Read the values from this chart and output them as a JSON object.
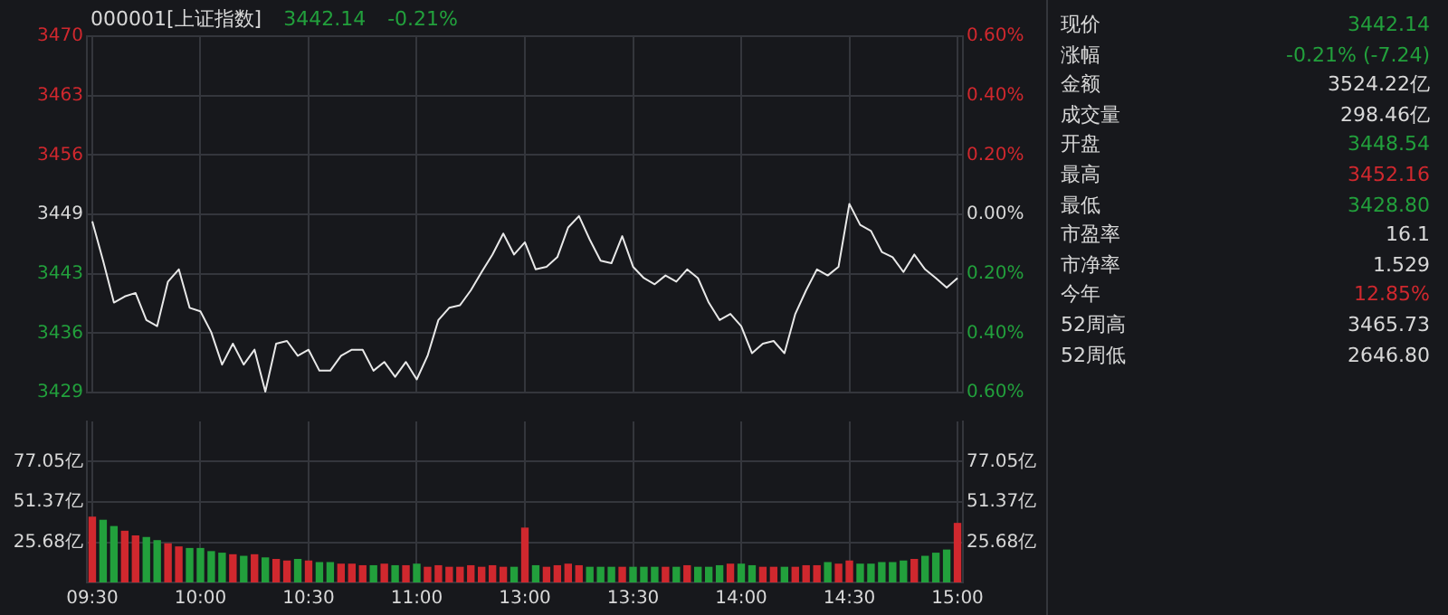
{
  "chart_data": [
    {
      "type": "line",
      "title": "000001[上证指数]",
      "annotations": [
        "3442.14",
        "-0.21%"
      ],
      "color": "#e8e8e8",
      "marker": "none",
      "grid": true,
      "tick_labels": "y",
      "categories": [
        null,
        null,
        null,
        null,
        null,
        null,
        null,
        null,
        null,
        null,
        null,
        null,
        null,
        null,
        null,
        null,
        null,
        null,
        null,
        null,
        null,
        null,
        null,
        null,
        null,
        null,
        null,
        null,
        null,
        null,
        null,
        null,
        null,
        null,
        null,
        null,
        null,
        null,
        null,
        null,
        null,
        null,
        null,
        null,
        null,
        null,
        null,
        null,
        null,
        null,
        null,
        null,
        null,
        null,
        null,
        null,
        null,
        null,
        null,
        null,
        null,
        null,
        null,
        null,
        null,
        null,
        null,
        null,
        null,
        null,
        null,
        null,
        null,
        null,
        null,
        null,
        null,
        null,
        null,
        null,
        null
      ],
      "values": [
        3448.6,
        3444.1,
        3439.3,
        3440.0,
        3440.4,
        3437.3,
        3436.6,
        3441.7,
        3443.1,
        3438.7,
        3438.3,
        3435.9,
        3432.2,
        3434.6,
        3432.2,
        3433.9,
        3429.1,
        3434.6,
        3434.9,
        3433.2,
        3433.9,
        3431.5,
        3431.5,
        3433.2,
        3433.9,
        3433.9,
        3431.5,
        3432.5,
        3430.8,
        3432.5,
        3430.5,
        3433.2,
        3437.3,
        3438.7,
        3439.0,
        3440.7,
        3442.8,
        3444.8,
        3447.2,
        3444.8,
        3446.2,
        3443.1,
        3443.4,
        3444.5,
        3447.9,
        3449.2,
        3446.5,
        3444.1,
        3443.8,
        3446.9,
        3443.4,
        3442.1,
        3441.4,
        3442.4,
        3441.7,
        3443.1,
        3442.1,
        3439.3,
        3437.3,
        3438.0,
        3436.6,
        3433.5,
        3434.6,
        3434.9,
        3433.5,
        3438.0,
        3440.7,
        3443.1,
        3442.4,
        3443.4,
        3450.6,
        3448.2,
        3447.5,
        3445.1,
        3444.5,
        3442.8,
        3444.8,
        3443.1,
        3442.1,
        3441.0,
        3442.1
      ],
      "ylim": [
        3429.0,
        3469.8
      ],
      "yticks": [
        {
          "value": 3429.0,
          "label": "3429"
        },
        {
          "value": 3435.8,
          "label": "3436"
        },
        {
          "value": 3442.6,
          "label": "3443"
        },
        {
          "value": 3449.4,
          "label": "3449"
        },
        {
          "value": 3456.2,
          "label": "3456"
        },
        {
          "value": 3463.0,
          "label": "3463"
        },
        {
          "value": 3469.8,
          "label": "3470"
        }
      ],
      "y2lim": [
        -0.6,
        0.6
      ],
      "y2ticks": [
        {
          "value": -0.6,
          "label": "0.60%"
        },
        {
          "value": -0.4,
          "label": "0.40%"
        },
        {
          "value": -0.2,
          "label": "0.20%"
        },
        {
          "value": 0,
          "label": "0.00%"
        },
        {
          "value": 0.2,
          "label": "0.20%"
        },
        {
          "value": 0.4,
          "label": "0.40%"
        },
        {
          "value": 0.6,
          "label": "0.60%"
        }
      ]
    },
    {
      "type": "bar",
      "grid": true,
      "categories": [
        "09:30",
        null,
        null,
        null,
        null,
        null,
        null,
        null,
        null,
        null,
        "10:00",
        null,
        null,
        null,
        null,
        null,
        null,
        null,
        null,
        null,
        "10:30",
        null,
        null,
        null,
        null,
        null,
        null,
        null,
        null,
        null,
        "11:00",
        null,
        null,
        null,
        null,
        null,
        null,
        null,
        null,
        null,
        "13:00",
        null,
        null,
        null,
        null,
        null,
        null,
        null,
        null,
        null,
        "13:30",
        null,
        null,
        null,
        null,
        null,
        null,
        null,
        null,
        null,
        "14:00",
        null,
        null,
        null,
        null,
        null,
        null,
        null,
        null,
        null,
        "14:30",
        null,
        null,
        null,
        null,
        null,
        null,
        null,
        null,
        null,
        "15:00"
      ],
      "values": [
        42,
        40,
        36,
        33,
        30,
        29,
        27,
        25,
        23,
        22,
        22,
        20,
        19,
        18,
        17,
        18,
        16,
        15,
        14,
        15,
        14,
        13,
        13,
        12,
        12,
        11,
        11,
        12,
        11,
        11,
        12,
        10,
        11,
        10,
        10,
        11,
        10,
        11,
        10,
        10,
        35,
        11,
        10,
        11,
        12,
        11,
        10,
        10,
        10,
        10,
        10,
        10,
        10,
        10,
        10,
        11,
        10,
        10,
        11,
        12,
        12,
        11,
        10,
        10,
        10,
        10,
        11,
        11,
        13,
        12,
        14,
        12,
        12,
        13,
        13,
        14,
        15,
        17,
        19,
        21,
        38
      ],
      "colors": [
        "#d0282e",
        "#22a03c",
        "#22a03c",
        "#d0282e",
        "#d0282e",
        "#22a03c",
        "#22a03c",
        "#d0282e",
        "#d0282e",
        "#22a03c",
        "#22a03c",
        "#22a03c",
        "#22a03c",
        "#d0282e",
        "#22a03c",
        "#d0282e",
        "#22a03c",
        "#d0282e",
        "#d0282e",
        "#22a03c",
        "#d0282e",
        "#22a03c",
        "#22a03c",
        "#d0282e",
        "#d0282e",
        "#d0282e",
        "#22a03c",
        "#d0282e",
        "#22a03c",
        "#d0282e",
        "#22a03c",
        "#d0282e",
        "#d0282e",
        "#d0282e",
        "#d0282e",
        "#d0282e",
        "#d0282e",
        "#d0282e",
        "#d0282e",
        "#22a03c",
        "#d0282e",
        "#22a03c",
        "#d0282e",
        "#d0282e",
        "#d0282e",
        "#d0282e",
        "#22a03c",
        "#22a03c",
        "#22a03c",
        "#d0282e",
        "#22a03c",
        "#22a03c",
        "#22a03c",
        "#d0282e",
        "#22a03c",
        "#d0282e",
        "#22a03c",
        "#22a03c",
        "#22a03c",
        "#d0282e",
        "#22a03c",
        "#22a03c",
        "#d0282e",
        "#d0282e",
        "#22a03c",
        "#d0282e",
        "#d0282e",
        "#d0282e",
        "#22a03c",
        "#d0282e",
        "#d0282e",
        "#22a03c",
        "#22a03c",
        "#22a03c",
        "#22a03c",
        "#22a03c",
        "#d0282e",
        "#22a03c",
        "#22a03c",
        "#22a03c",
        "#d0282e"
      ],
      "ylim": [
        0,
        102.73
      ],
      "yticks": [
        {
          "value": 25.68,
          "label": "25.68亿"
        },
        {
          "value": 51.37,
          "label": "51.37亿"
        },
        {
          "value": 77.05,
          "label": "77.05亿"
        }
      ],
      "y2lim": [
        0,
        102.73
      ],
      "y2ticks": [
        {
          "value": 25.68,
          "label": "25.68亿"
        },
        {
          "value": 51.37,
          "label": "51.37亿"
        },
        {
          "value": 77.05,
          "label": "77.05亿"
        }
      ]
    },
    {
      "type": "other",
      "annotations": [
        "现价",
        "3442.14",
        "涨幅",
        "-0.21% (-7.24)",
        "金额",
        "3524.22亿",
        "成交量",
        "298.46亿",
        "开盘",
        "3448.54",
        "最高",
        "3452.16",
        "最低",
        "3428.80",
        "市盈率",
        "16.1",
        "市净率",
        "1.529",
        "今年",
        "12.85%",
        "52周高",
        "3465.73",
        "52周低",
        "2646.80"
      ],
      "colors": [
        "#22a03c",
        "#22a03c",
        "#d8d8d8",
        "#d8d8d8",
        "#22a03c",
        "#d0282e",
        "#22a03c",
        "#d8d8d8",
        "#d8d8d8",
        "#d0282e",
        "#d8d8d8",
        "#d8d8d8"
      ]
    }
  ]
}
